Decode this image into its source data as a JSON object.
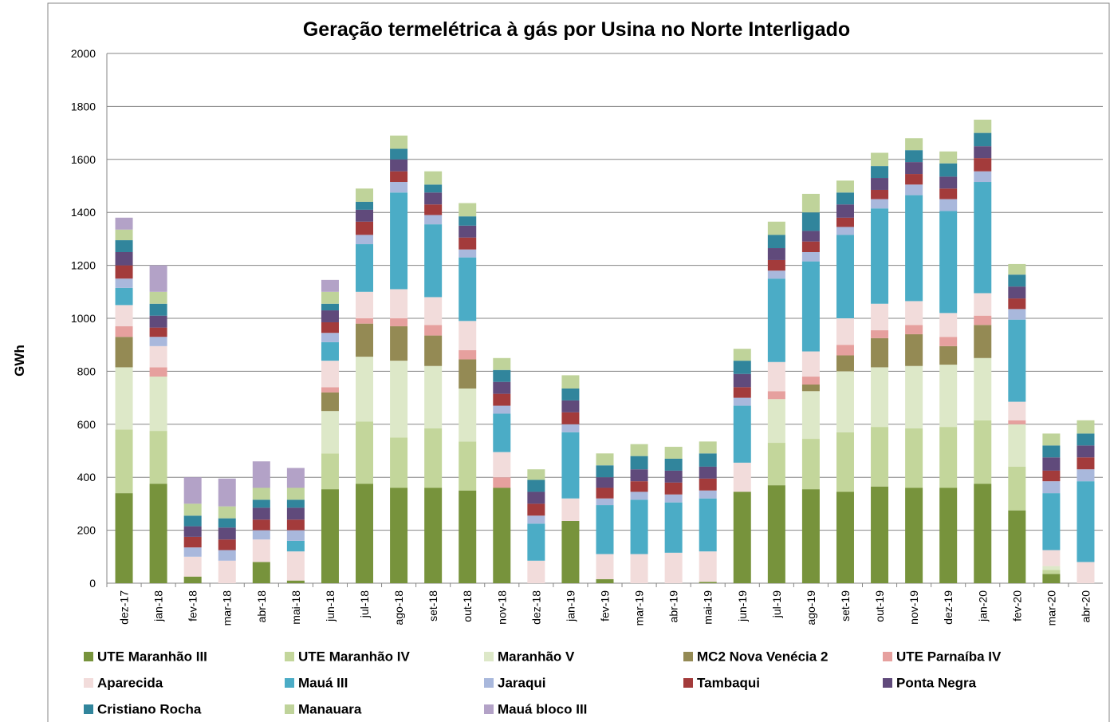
{
  "chart_data": {
    "type": "stacked_bar",
    "title": "Geração termelétrica à gás por Usina no Norte Interligado",
    "y_label": "GWh",
    "categories": [
      "dez-17",
      "jan-18",
      "fev-18",
      "mar-18",
      "abr-18",
      "mai-18",
      "jun-18",
      "jul-18",
      "ago-18",
      "set-18",
      "out-18",
      "nov-18",
      "dez-18",
      "jan-19",
      "fev-19",
      "mar-19",
      "abr-19",
      "mai-19",
      "jun-19",
      "jul-19",
      "ago-19",
      "set-19",
      "out-19",
      "nov-19",
      "dez-19",
      "jan-20",
      "fev-20",
      "mar-20",
      "abr-20"
    ],
    "ylim": [
      0,
      2000
    ],
    "yticks": [
      0,
      200,
      400,
      600,
      800,
      1000,
      1200,
      1400,
      1600,
      1800,
      2000
    ],
    "grid": true,
    "series": [
      {
        "name": "UTE Maranhão III",
        "color": "#77933c",
        "values": [
          340,
          375,
          25,
          0,
          80,
          10,
          355,
          375,
          360,
          360,
          350,
          360,
          0,
          235,
          15,
          0,
          0,
          5,
          345,
          370,
          355,
          345,
          365,
          360,
          360,
          375,
          275,
          35,
          0
        ]
      },
      {
        "name": "UTE Maranhão IV",
        "color": "#c3d69b",
        "values": [
          240,
          200,
          0,
          0,
          0,
          0,
          135,
          235,
          190,
          225,
          185,
          0,
          0,
          0,
          0,
          0,
          0,
          0,
          0,
          160,
          190,
          225,
          225,
          225,
          230,
          240,
          165,
          15,
          0
        ]
      },
      {
        "name": "Maranhão V",
        "color": "#dde8c8",
        "values": [
          235,
          205,
          0,
          0,
          0,
          0,
          160,
          245,
          290,
          235,
          200,
          0,
          0,
          0,
          0,
          0,
          0,
          0,
          0,
          165,
          180,
          230,
          225,
          235,
          235,
          235,
          160,
          15,
          0
        ]
      },
      {
        "name": "MC2 Nova Venécia 2",
        "color": "#948a54",
        "values": [
          115,
          0,
          0,
          0,
          0,
          0,
          70,
          125,
          130,
          115,
          110,
          0,
          0,
          0,
          0,
          0,
          0,
          0,
          0,
          0,
          25,
          60,
          110,
          120,
          70,
          125,
          0,
          0,
          0
        ]
      },
      {
        "name": "UTE Parnaíba IV",
        "color": "#e6a09e",
        "values": [
          40,
          35,
          0,
          0,
          0,
          0,
          20,
          20,
          30,
          40,
          35,
          40,
          0,
          0,
          0,
          0,
          0,
          0,
          0,
          30,
          30,
          40,
          30,
          35,
          35,
          35,
          15,
          0,
          0
        ]
      },
      {
        "name": "Aparecida",
        "color": "#f2dcdb",
        "values": [
          80,
          80,
          75,
          85,
          85,
          110,
          100,
          100,
          110,
          105,
          110,
          95,
          85,
          85,
          95,
          110,
          115,
          115,
          110,
          110,
          95,
          100,
          100,
          90,
          90,
          85,
          70,
          60,
          80
        ]
      },
      {
        "name": "Mauá III",
        "color": "#4bacc6",
        "values": [
          65,
          0,
          0,
          0,
          0,
          40,
          70,
          180,
          365,
          275,
          240,
          145,
          140,
          250,
          185,
          205,
          190,
          200,
          215,
          315,
          340,
          315,
          360,
          400,
          385,
          420,
          310,
          215,
          305
        ]
      },
      {
        "name": "Jaraqui",
        "color": "#a9b8dc",
        "values": [
          35,
          35,
          35,
          40,
          35,
          40,
          35,
          35,
          40,
          35,
          30,
          30,
          30,
          30,
          25,
          30,
          30,
          30,
          30,
          30,
          35,
          30,
          35,
          40,
          45,
          40,
          40,
          45,
          45
        ]
      },
      {
        "name": "Tambaqui",
        "color": "#a33b3b",
        "values": [
          50,
          35,
          40,
          40,
          40,
          40,
          40,
          50,
          40,
          40,
          45,
          45,
          45,
          45,
          40,
          40,
          45,
          45,
          40,
          40,
          40,
          35,
          35,
          40,
          40,
          50,
          40,
          40,
          45
        ]
      },
      {
        "name": "Ponta Negra",
        "color": "#604a7b",
        "values": [
          50,
          45,
          40,
          45,
          45,
          45,
          45,
          45,
          45,
          45,
          45,
          45,
          45,
          45,
          40,
          45,
          45,
          45,
          50,
          45,
          40,
          50,
          45,
          45,
          45,
          45,
          45,
          50,
          45
        ]
      },
      {
        "name": "Cristiano Rocha",
        "color": "#31859c",
        "values": [
          45,
          45,
          40,
          35,
          30,
          30,
          25,
          30,
          40,
          30,
          35,
          45,
          45,
          45,
          45,
          50,
          45,
          50,
          50,
          50,
          70,
          45,
          45,
          45,
          50,
          50,
          45,
          45,
          45
        ]
      },
      {
        "name": "Manauara",
        "color": "#bfd39a",
        "values": [
          40,
          45,
          45,
          45,
          45,
          45,
          45,
          50,
          50,
          50,
          50,
          45,
          40,
          50,
          45,
          45,
          45,
          45,
          45,
          50,
          70,
          45,
          50,
          45,
          45,
          50,
          40,
          45,
          50
        ]
      },
      {
        "name": "Mauá bloco III",
        "color": "#b3a2c7",
        "values": [
          45,
          100,
          100,
          105,
          100,
          75,
          45,
          0,
          0,
          0,
          0,
          0,
          0,
          0,
          0,
          0,
          0,
          0,
          0,
          0,
          0,
          0,
          0,
          0,
          0,
          0,
          0,
          0,
          0
        ]
      }
    ]
  }
}
